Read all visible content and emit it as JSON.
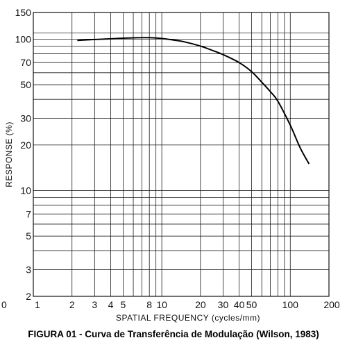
{
  "chart_data": {
    "type": "line",
    "title": "",
    "xlabel": "SPATIAL FREQUENCY (cycles/mm)",
    "ylabel": "RESPONSE (%)",
    "x_scale": "log",
    "y_scale": "log",
    "xlim": [
      1,
      200
    ],
    "ylim": [
      2,
      150
    ],
    "grid": true,
    "x_gridlines": [
      1,
      2,
      3,
      4,
      5,
      6,
      7,
      8,
      9,
      10,
      20,
      30,
      40,
      50,
      60,
      70,
      80,
      90,
      100,
      200
    ],
    "y_gridlines": [
      2,
      3,
      4,
      5,
      6,
      7,
      8,
      9,
      10,
      20,
      30,
      40,
      50,
      60,
      70,
      80,
      90,
      100,
      110,
      150
    ],
    "x_ticks": [
      {
        "value": 1,
        "label": "1"
      },
      {
        "value": 2,
        "label": "2"
      },
      {
        "value": 3,
        "label": "3"
      },
      {
        "value": 4,
        "label": "4"
      },
      {
        "value": 5,
        "label": "5"
      },
      {
        "value": 8,
        "label": "8"
      },
      {
        "value": 10,
        "label": "10"
      },
      {
        "value": 20,
        "label": "20"
      },
      {
        "value": 30,
        "label": "30"
      },
      {
        "value": 40,
        "label": "40"
      },
      {
        "value": 50,
        "label": "50"
      },
      {
        "value": 100,
        "label": "100"
      },
      {
        "value": 200,
        "label": "200"
      }
    ],
    "y_ticks": [
      {
        "value": 2,
        "label": "2"
      },
      {
        "value": 3,
        "label": "3"
      },
      {
        "value": 5,
        "label": "5"
      },
      {
        "value": 7,
        "label": "7"
      },
      {
        "value": 10,
        "label": "10"
      },
      {
        "value": 20,
        "label": "20"
      },
      {
        "value": 30,
        "label": "30"
      },
      {
        "value": 50,
        "label": "50"
      },
      {
        "value": 70,
        "label": "70"
      },
      {
        "value": 100,
        "label": "100"
      },
      {
        "value": 150,
        "label": "150"
      }
    ],
    "stray_x_label": "0",
    "series": [
      {
        "x": [
          2.2,
          3,
          4,
          5,
          6,
          7,
          8,
          10,
          12,
          15,
          20,
          25,
          30,
          40,
          50,
          60,
          70,
          80,
          100,
          120,
          140
        ],
        "y": [
          98,
          99.5,
          100.5,
          101.5,
          102,
          102.3,
          102.3,
          101,
          99,
          96,
          90,
          84,
          79,
          70,
          61,
          52,
          45,
          39,
          27,
          19,
          15
        ]
      }
    ]
  },
  "caption": "FIGURA 01 - Curva de Transferência de Modulação (Wilson, 1983)"
}
